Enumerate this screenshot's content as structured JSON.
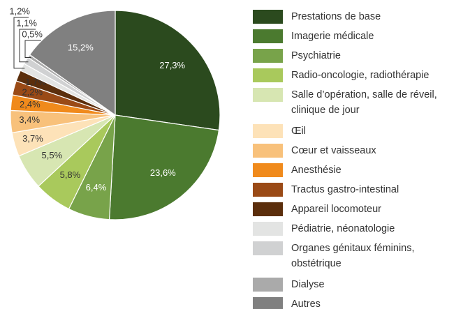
{
  "chart_data": {
    "type": "pie",
    "categories": [
      "Prestations de base",
      "Imagerie médicale",
      "Psychiatrie",
      "Radio-oncologie, radiothérapie",
      "Salle d’opération, salle de réveil,\nclinique de jour",
      "Œil",
      "Cœur et vaisseaux",
      "Anesthésie",
      "Tractus gastro-intestinal",
      "Appareil locomoteur",
      "Pédiatrie, néonatologie",
      "Organes génitaux féminins,\nobstétrique",
      "Dialyse",
      "Autres"
    ],
    "values": [
      27.3,
      23.6,
      6.4,
      5.8,
      5.5,
      3.7,
      3.4,
      2.4,
      2.2,
      1.7,
      1.2,
      1.1,
      0.5,
      15.2
    ],
    "value_labels": [
      "27,3%",
      "23,6%",
      "6,4%",
      "5,8%",
      "5,5%",
      "3,7%",
      "3,4%",
      "2,4%",
      "2,2%",
      "1,7%",
      "1,2%",
      "1,1%",
      "0,5%",
      "15,2%"
    ],
    "colors": [
      "#2b4a1e",
      "#4b7a2f",
      "#78a34a",
      "#a9c95c",
      "#d7e6b2",
      "#fde2b8",
      "#f8c17b",
      "#f08a1c",
      "#9a4a16",
      "#5b2e0c",
      "#e3e4e3",
      "#d0d1d2",
      "#aaaaaa",
      "#808080"
    ],
    "legend": "right"
  }
}
